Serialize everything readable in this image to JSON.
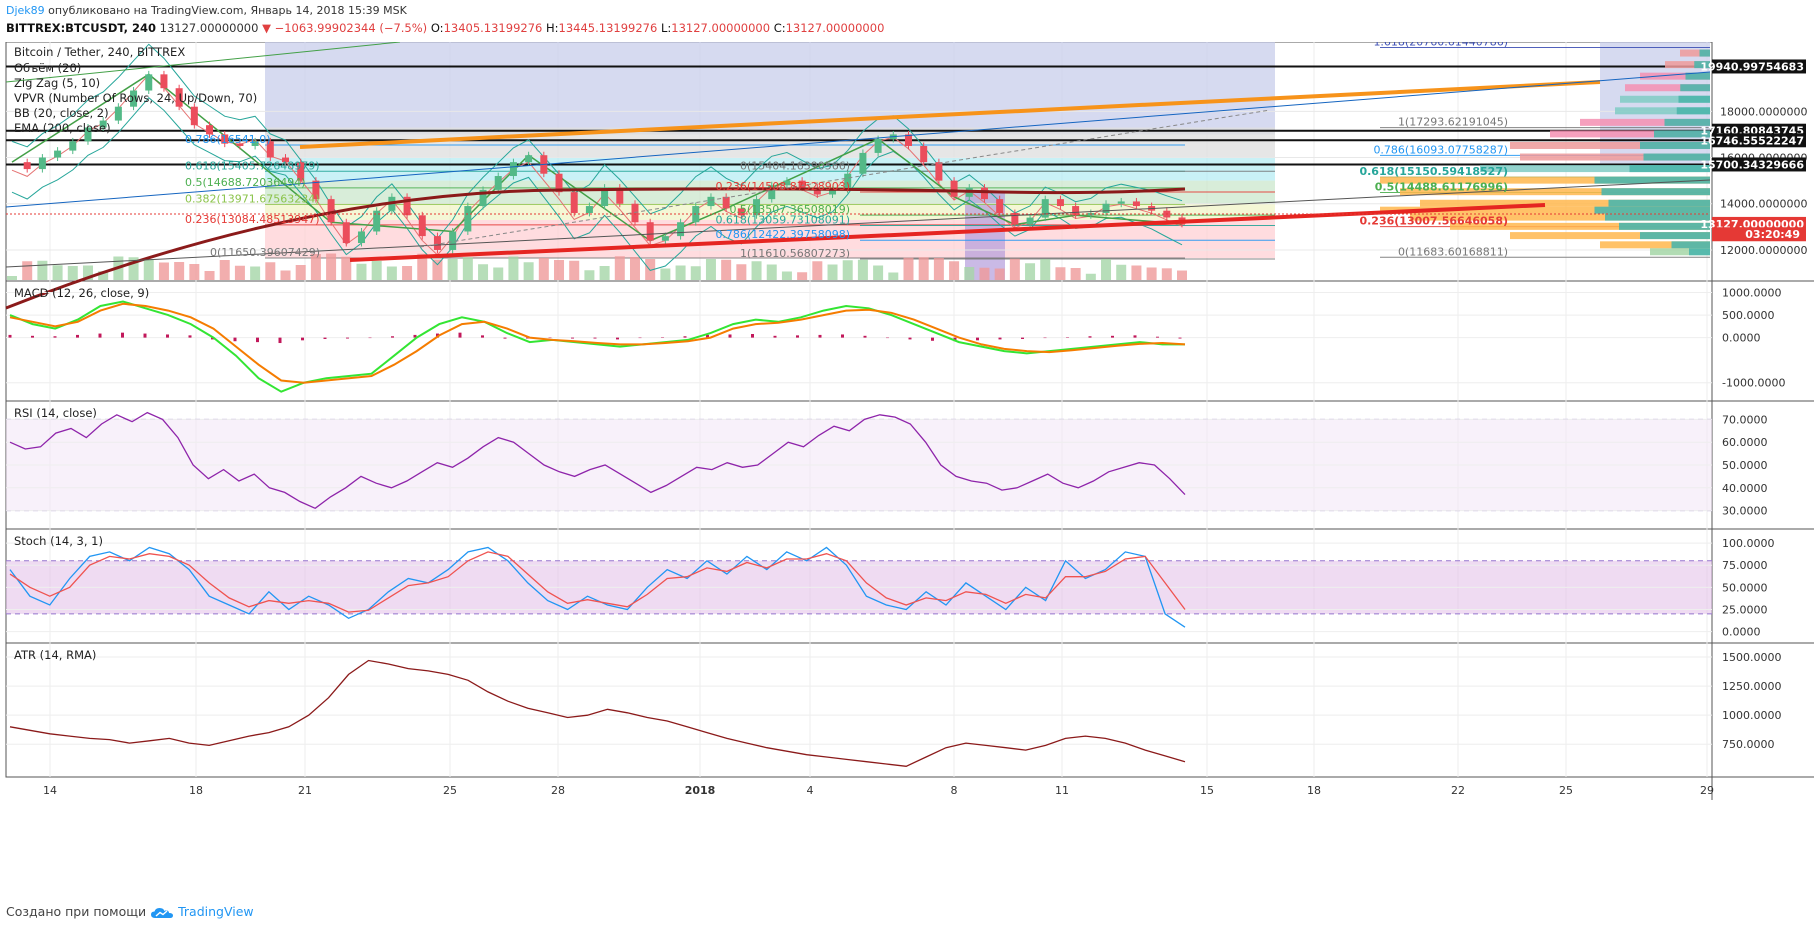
{
  "header": {
    "author": "Djek89",
    "published": "опубликовано на TradingView.com, Январь 14, 2018 15:39 MSK",
    "symbol": "BITTREX:BTCUSDT, 240",
    "last": "13127.00000000",
    "change_arrow": "▼",
    "change": "−1063.99902344 (−7.5%)",
    "open_label": "O:",
    "open": "13405.13199276",
    "high_label": "H:",
    "high": "13445.13199276",
    "low_label": "L:",
    "low": "13127.00000000",
    "close_label": "C:",
    "close": "13127.00000000"
  },
  "footer": {
    "created": "Создано при помощи",
    "brand": "TradingView"
  },
  "colors": {
    "up": "#53b987",
    "down": "#eb4d5c",
    "accent": "#2196f3",
    "price_tag": "#e53935"
  },
  "chart_data": [
    {
      "type": "line",
      "title": "Bitcoin / Tether, 240, BITTREX",
      "legend": [
        "Объём (20)",
        "Zig Zag (5, 10)",
        "VPVR (Number Of Rows, 24, Up/Down, 70)",
        "BB (20, close, 2)",
        "EMA (200, close)"
      ],
      "x_ticks": [
        "14",
        "18",
        "21",
        "25",
        "28",
        "2018",
        "4",
        "8",
        "11",
        "15",
        "18",
        "22",
        "25",
        "29"
      ],
      "y_ticks": [
        "18000.0000000",
        "16000.0000000",
        "14000.0000000",
        "12000.0000000"
      ],
      "ylim": [
        10700,
        21000
      ],
      "price_tags": [
        {
          "label": "19940.99754683",
          "value": 19940.99754683,
          "color": "#111111"
        },
        {
          "label": "17160.80843745",
          "value": 17160.80843745,
          "color": "#111111"
        },
        {
          "label": "16746.55522247",
          "value": 16746.55522247,
          "color": "#111111"
        },
        {
          "label": "15700.34329666",
          "value": 15700.34329666,
          "color": "#111111"
        },
        {
          "label": "13127.00000000",
          "value": 13127.0,
          "color": "#e53935"
        },
        {
          "label": "03:20:49",
          "value": 12680,
          "color": "#e53935"
        }
      ],
      "fib_left": [
        {
          "label": "0.786(16541.0)",
          "value": 16541,
          "color": "#2196f3"
        },
        {
          "label": "0.618(15405.72648979)",
          "value": 15405.73,
          "color": "#26a69a"
        },
        {
          "label": "0.5(14688.72036494)",
          "value": 14688.72,
          "color": "#4caf50"
        },
        {
          "label": "0.382(13971.67563234)",
          "value": 13971.68,
          "color": "#8bc34a"
        },
        {
          "label": "0.236(13084.48513947)",
          "value": 13084.49,
          "color": "#e53935"
        },
        {
          "label": "0(11650.39607429)",
          "value": 11650.4,
          "color": "#777777"
        }
      ],
      "fib_mid": [
        {
          "label": "0(15404.16390566)",
          "value": 15404.16,
          "color": "#777777"
        },
        {
          "label": "0.236(14508.87528903)",
          "value": 14508.88,
          "color": "#e53935"
        },
        {
          "label": "0.5(13507.36508019)",
          "value": 13507.37,
          "color": "#4caf50"
        },
        {
          "label": "0.618(13059.73108091)",
          "value": 13059.73,
          "color": "#26a69a"
        },
        {
          "label": "0.786(12422.39758098)",
          "value": 12422.4,
          "color": "#2196f3"
        },
        {
          "label": "1(11610.56807273)",
          "value": 11610.57,
          "color": "#777777"
        }
      ],
      "fib_right": [
        {
          "label": "1.618(20760.61440786)",
          "value": 20760.61,
          "color": "#3f51b5"
        },
        {
          "label": "1(17293.62191045)",
          "value": 17293.62,
          "color": "#777777"
        },
        {
          "label": "0.786(16093.07758287)",
          "value": 16093.08,
          "color": "#2196f3"
        },
        {
          "label": "0.618(15150.59418527)",
          "value": 15150.59,
          "color": "#26a69a"
        },
        {
          "label": "0.5(14488.61176996)",
          "value": 14488.61,
          "color": "#4caf50"
        },
        {
          "label": "0.236(13007.56646058)",
          "value": 13007.57,
          "color": "#e53935"
        },
        {
          "label": "0(11683.60168811)",
          "value": 11683.6,
          "color": "#777777"
        }
      ],
      "price_series": [
        15800,
        15500,
        16000,
        16300,
        16700,
        17300,
        17600,
        18200,
        18900,
        19600,
        19000,
        18200,
        17400,
        17000,
        16600,
        16500,
        16700,
        16000,
        15800,
        15000,
        14200,
        13200,
        12300,
        12800,
        13700,
        14300,
        13500,
        12600,
        12000,
        12800,
        13900,
        14600,
        15200,
        15800,
        16100,
        15300,
        14500,
        13600,
        13900,
        14700,
        14000,
        13200,
        12400,
        12600,
        13200,
        13900,
        14300,
        13800,
        13500,
        14200,
        14800,
        15000,
        14700,
        14400,
        14600,
        15300,
        16200,
        16800,
        17000,
        16500,
        15800,
        15000,
        14300,
        14700,
        14200,
        13600,
        13100,
        13400,
        14200,
        13900,
        13500,
        13600,
        14000,
        14100,
        13900,
        13700,
        13405,
        13127
      ]
    },
    {
      "type": "line",
      "title": "MACD (12, 26, close, 9)",
      "y_ticks": [
        "1000.0000",
        "500.0000",
        "0.0000",
        "-1000.0000"
      ],
      "ylim": [
        -1250,
        1100
      ],
      "series": [
        {
          "values": [
            500,
            300,
            200,
            400,
            700,
            800,
            650,
            500,
            300,
            0,
            -400,
            -900,
            -1200,
            -1000,
            -900,
            -850,
            -800,
            -400,
            0,
            300,
            450,
            350,
            100,
            -100,
            -50,
            -100,
            -150,
            -200,
            -150,
            -100,
            -50,
            100,
            300,
            400,
            350,
            450,
            600,
            700,
            650,
            500,
            300,
            100,
            -100,
            -200,
            -300,
            -350,
            -300,
            -250,
            -200,
            -150,
            -100,
            -150,
            -150
          ]
        },
        {
          "values": [
            450,
            350,
            250,
            350,
            600,
            750,
            700,
            600,
            450,
            200,
            -200,
            -600,
            -950,
            -1000,
            -950,
            -900,
            -850,
            -600,
            -300,
            50,
            300,
            350,
            200,
            0,
            -50,
            -80,
            -120,
            -150,
            -150,
            -120,
            -80,
            0,
            200,
            300,
            330,
            400,
            500,
            600,
            620,
            550,
            400,
            200,
            0,
            -150,
            -250,
            -300,
            -320,
            -280,
            -230,
            -180,
            -140,
            -120,
            -150
          ]
        }
      ],
      "histogram": [
        60,
        40,
        30,
        60,
        90,
        110,
        90,
        70,
        50,
        -40,
        -80,
        -100,
        -120,
        -60,
        -30,
        -20,
        -10,
        30,
        60,
        90,
        110,
        50,
        0,
        -20,
        -10,
        -20,
        -20,
        -40,
        -10,
        10,
        30,
        60,
        70,
        80,
        40,
        50,
        60,
        70,
        40,
        -10,
        -40,
        -70,
        -80,
        -60,
        -40,
        -30,
        -10,
        10,
        30,
        40,
        50,
        20,
        -20
      ]
    },
    {
      "type": "line",
      "title": "RSI (14, close)",
      "y_ticks": [
        "70.0000",
        "60.0000",
        "50.0000",
        "40.0000",
        "30.0000"
      ],
      "ylim": [
        25,
        75
      ],
      "series": [
        {
          "values": [
            60,
            57,
            58,
            64,
            66,
            62,
            68,
            72,
            69,
            73,
            70,
            62,
            50,
            44,
            48,
            43,
            46,
            40,
            38,
            34,
            31,
            36,
            40,
            45,
            42,
            40,
            43,
            47,
            51,
            49,
            53,
            58,
            62,
            60,
            55,
            50,
            47,
            45,
            48,
            50,
            46,
            42,
            38,
            41,
            45,
            49,
            48,
            51,
            49,
            50,
            55,
            60,
            58,
            63,
            67,
            65,
            70,
            72,
            71,
            68,
            60,
            50,
            45,
            43,
            42,
            39,
            40,
            43,
            46,
            42,
            40,
            43,
            47,
            49,
            51,
            50,
            44,
            37
          ]
        }
      ]
    },
    {
      "type": "line",
      "title": "Stoch (14, 3, 1)",
      "y_ticks": [
        "100.0000",
        "75.0000",
        "50.0000",
        "25.0000",
        "0.0000"
      ],
      "ylim": [
        -5,
        108
      ],
      "series": [
        {
          "values": [
            70,
            40,
            30,
            60,
            85,
            90,
            80,
            95,
            88,
            70,
            40,
            30,
            20,
            45,
            25,
            40,
            30,
            15,
            25,
            45,
            60,
            55,
            70,
            90,
            95,
            80,
            55,
            35,
            25,
            40,
            30,
            25,
            50,
            70,
            60,
            80,
            65,
            85,
            70,
            90,
            80,
            95,
            75,
            40,
            30,
            25,
            45,
            30,
            55,
            40,
            25,
            50,
            35,
            80,
            60,
            70,
            90,
            85,
            20,
            5
          ]
        },
        {
          "values": [
            65,
            50,
            40,
            50,
            75,
            85,
            82,
            88,
            85,
            75,
            55,
            38,
            28,
            35,
            32,
            35,
            32,
            22,
            24,
            38,
            52,
            55,
            62,
            80,
            90,
            85,
            65,
            45,
            32,
            36,
            32,
            28,
            42,
            60,
            62,
            72,
            68,
            78,
            72,
            82,
            82,
            88,
            80,
            55,
            38,
            30,
            38,
            35,
            45,
            42,
            32,
            42,
            38,
            62,
            62,
            68,
            82,
            85,
            55,
            25
          ]
        }
      ]
    },
    {
      "type": "line",
      "title": "ATR (14, RMA)",
      "y_ticks": [
        "1500.0000",
        "1250.0000",
        "1000.0000",
        "750.0000"
      ],
      "ylim": [
        520,
        1560
      ],
      "series": [
        {
          "values": [
            900,
            870,
            840,
            820,
            800,
            790,
            760,
            780,
            800,
            760,
            740,
            780,
            820,
            850,
            900,
            1000,
            1150,
            1350,
            1470,
            1440,
            1400,
            1380,
            1350,
            1300,
            1200,
            1120,
            1060,
            1020,
            980,
            1000,
            1050,
            1020,
            980,
            950,
            900,
            850,
            800,
            760,
            720,
            690,
            660,
            640,
            620,
            600,
            580,
            560,
            640,
            720,
            760,
            740,
            720,
            700,
            740,
            800,
            820,
            800,
            760,
            700,
            650,
            600
          ]
        }
      ]
    }
  ]
}
